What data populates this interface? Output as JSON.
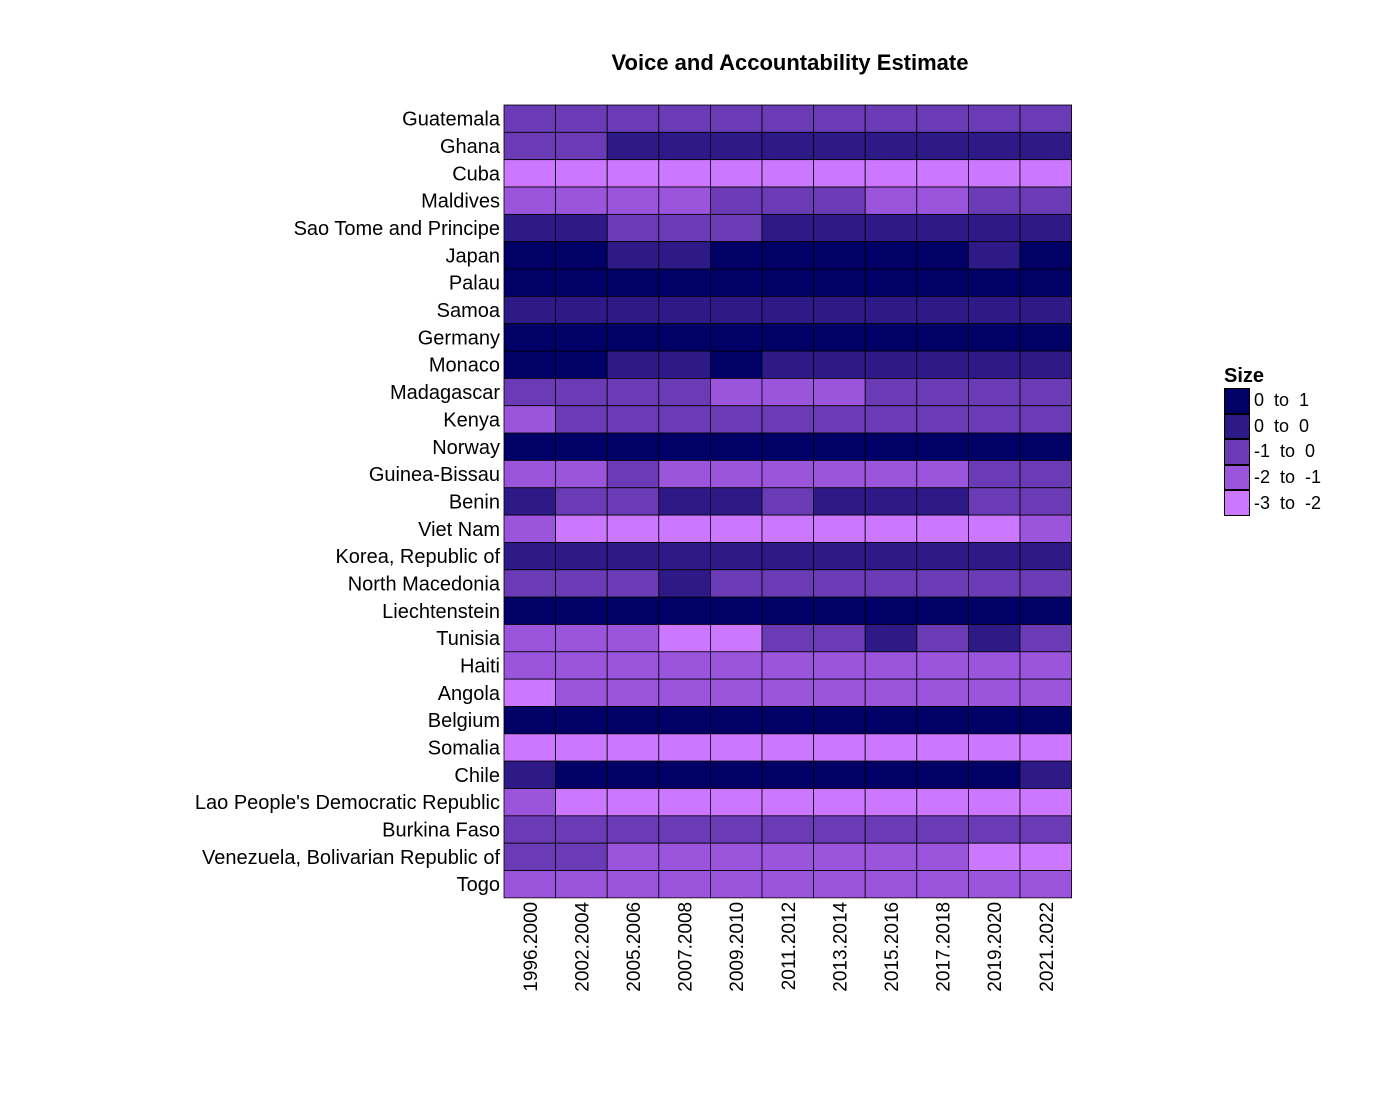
{
  "chart_data": {
    "type": "heatmap",
    "title": "Voice and Accountability Estimate",
    "xlabel": "",
    "ylabel": "",
    "x_categories": [
      "1996.2000",
      "2002.2004",
      "2005.2006",
      "2007.2008",
      "2009.2010",
      "2011.2012",
      "2013.2014",
      "2015.2016",
      "2017.2018",
      "2019.2020",
      "2021.2022"
    ],
    "y_categories": [
      "Guatemala",
      "Ghana",
      "Cuba",
      "Maldives",
      "Sao Tome and Principe",
      "Japan",
      "Palau",
      "Samoa",
      "Germany",
      "Monaco",
      "Madagascar",
      "Kenya",
      "Norway",
      "Guinea-Bissau",
      "Benin",
      "Viet Nam",
      "Korea, Republic of",
      "North Macedonia",
      "Liechtenstein",
      "Tunisia",
      "Haiti",
      "Angola",
      "Belgium",
      "Somalia",
      "Chile",
      "Lao People's Democratic Republic",
      "Burkina Faso",
      "Venezuela, Bolivarian Republic of",
      "Togo"
    ],
    "bin_colors": [
      "#000066",
      "#2e1a87",
      "#6a3bb5",
      "#9b55dd",
      "#cc77ff"
    ],
    "values_bin_index": [
      [
        2,
        2,
        2,
        2,
        2,
        2,
        2,
        2,
        2,
        2,
        2
      ],
      [
        2,
        2,
        1,
        1,
        1,
        1,
        1,
        1,
        1,
        1,
        1
      ],
      [
        4,
        4,
        4,
        4,
        4,
        4,
        4,
        4,
        4,
        4,
        4
      ],
      [
        3,
        3,
        3,
        3,
        2,
        2,
        2,
        3,
        3,
        2,
        2
      ],
      [
        1,
        1,
        2,
        2,
        2,
        1,
        1,
        1,
        1,
        1,
        1
      ],
      [
        0,
        0,
        1,
        1,
        0,
        0,
        0,
        0,
        0,
        1,
        0
      ],
      [
        0,
        0,
        0,
        0,
        0,
        0,
        0,
        0,
        0,
        0,
        0
      ],
      [
        1,
        1,
        1,
        1,
        1,
        1,
        1,
        1,
        1,
        1,
        1
      ],
      [
        0,
        0,
        0,
        0,
        0,
        0,
        0,
        0,
        0,
        0,
        0
      ],
      [
        0,
        0,
        1,
        1,
        0,
        1,
        1,
        1,
        1,
        1,
        1
      ],
      [
        2,
        2,
        2,
        2,
        3,
        3,
        3,
        2,
        2,
        2,
        2
      ],
      [
        3,
        2,
        2,
        2,
        2,
        2,
        2,
        2,
        2,
        2,
        2
      ],
      [
        0,
        0,
        0,
        0,
        0,
        0,
        0,
        0,
        0,
        0,
        0
      ],
      [
        3,
        3,
        2,
        3,
        3,
        3,
        3,
        3,
        3,
        2,
        2
      ],
      [
        1,
        2,
        2,
        1,
        1,
        2,
        1,
        1,
        1,
        2,
        2
      ],
      [
        3,
        4,
        4,
        4,
        4,
        4,
        4,
        4,
        4,
        4,
        3
      ],
      [
        1,
        1,
        1,
        1,
        1,
        1,
        1,
        1,
        1,
        1,
        1
      ],
      [
        2,
        2,
        2,
        1,
        2,
        2,
        2,
        2,
        2,
        2,
        2
      ],
      [
        0,
        0,
        0,
        0,
        0,
        0,
        0,
        0,
        0,
        0,
        0
      ],
      [
        3,
        3,
        3,
        4,
        4,
        2,
        2,
        1,
        2,
        1,
        2
      ],
      [
        3,
        3,
        3,
        3,
        3,
        3,
        3,
        3,
        3,
        3,
        3
      ],
      [
        4,
        3,
        3,
        3,
        3,
        3,
        3,
        3,
        3,
        3,
        3
      ],
      [
        0,
        0,
        0,
        0,
        0,
        0,
        0,
        0,
        0,
        0,
        0
      ],
      [
        4,
        4,
        4,
        4,
        4,
        4,
        4,
        4,
        4,
        4,
        4
      ],
      [
        1,
        0,
        0,
        0,
        0,
        0,
        0,
        0,
        0,
        0,
        1
      ],
      [
        3,
        4,
        4,
        4,
        4,
        4,
        4,
        4,
        4,
        4,
        4
      ],
      [
        2,
        2,
        2,
        2,
        2,
        2,
        2,
        2,
        2,
        2,
        2
      ],
      [
        2,
        2,
        3,
        3,
        3,
        3,
        3,
        3,
        3,
        4,
        4
      ],
      [
        3,
        3,
        3,
        3,
        3,
        3,
        3,
        3,
        3,
        3,
        3
      ]
    ],
    "legend": {
      "title": "Size",
      "items": [
        {
          "label": "0  to  1",
          "color": "#000066"
        },
        {
          "label": "0  to  0",
          "color": "#2e1a87"
        },
        {
          "label": "-1  to  0",
          "color": "#6a3bb5"
        },
        {
          "label": "-2  to  -1",
          "color": "#9b55dd"
        },
        {
          "label": "-3  to  -2",
          "color": "#cc77ff"
        }
      ],
      "placement": "right"
    }
  }
}
